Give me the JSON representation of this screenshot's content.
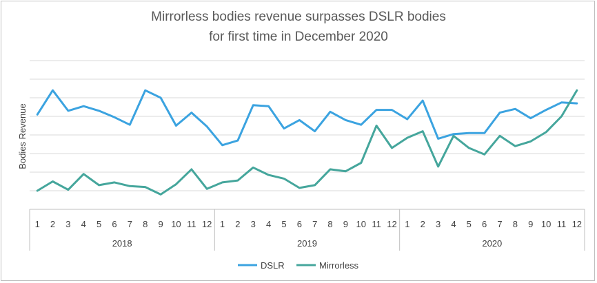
{
  "chart_data": {
    "type": "line",
    "title_lines": [
      "Mirrorless bodies revenue surpasses DSLR bodies",
      "for first time in December 2020"
    ],
    "xlabel": "",
    "ylabel": "Bodies Revenue",
    "y_tick_labels": "none",
    "ylim": [
      0,
      8
    ],
    "grid": "horizontal",
    "legend_position": "bottom",
    "years": [
      "2018",
      "2019",
      "2020"
    ],
    "months": [
      "1",
      "2",
      "3",
      "4",
      "5",
      "6",
      "7",
      "8",
      "9",
      "10",
      "11",
      "12"
    ],
    "series": [
      {
        "name": "DSLR",
        "color": "#3ba3e0",
        "values": [
          5.1,
          6.4,
          5.3,
          5.55,
          5.3,
          4.95,
          4.55,
          6.4,
          6.0,
          4.5,
          5.2,
          4.45,
          3.45,
          3.7,
          5.6,
          5.55,
          4.35,
          4.8,
          4.2,
          5.25,
          4.8,
          4.55,
          5.35,
          5.35,
          4.85,
          5.85,
          3.8,
          4.05,
          4.1,
          4.1,
          5.2,
          5.4,
          4.9,
          5.35,
          5.75,
          5.7
        ]
      },
      {
        "name": "Mirrorless",
        "color": "#45a69c",
        "values": [
          1.0,
          1.5,
          1.05,
          1.9,
          1.3,
          1.45,
          1.25,
          1.2,
          0.8,
          1.35,
          2.15,
          1.1,
          1.45,
          1.55,
          2.25,
          1.85,
          1.65,
          1.15,
          1.3,
          2.15,
          2.05,
          2.5,
          4.5,
          3.3,
          3.85,
          4.2,
          2.3,
          3.95,
          3.3,
          2.95,
          3.95,
          3.4,
          3.65,
          4.15,
          5.0,
          6.4
        ]
      }
    ]
  }
}
